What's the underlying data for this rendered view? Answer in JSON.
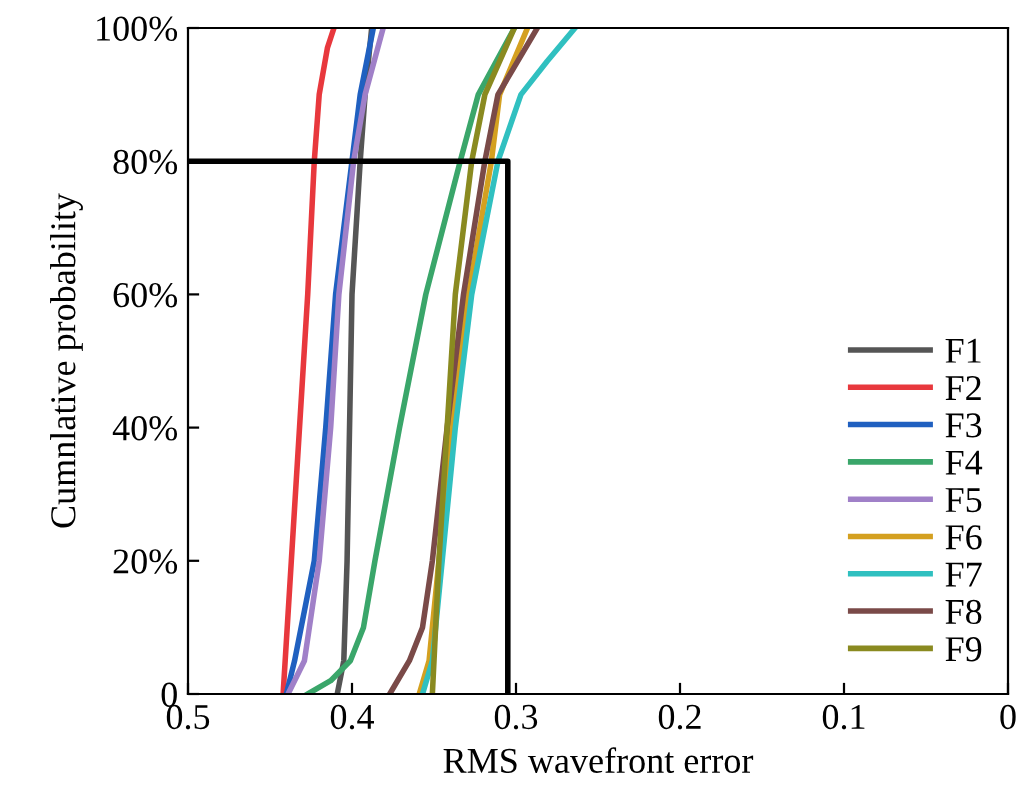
{
  "chart_data": {
    "type": "line",
    "xlabel": "RMS wavefront error",
    "ylabel": "Cumnlative probability",
    "xlim": [
      0.5,
      0
    ],
    "xticks": [
      0.5,
      0.4,
      0.3,
      0.2,
      0.1,
      0
    ],
    "ylim": [
      0,
      100
    ],
    "yticks": [
      {
        "value": 0,
        "label": "0"
      },
      {
        "value": 20,
        "label": "20%"
      },
      {
        "value": 40,
        "label": "40%"
      },
      {
        "value": 60,
        "label": "60%"
      },
      {
        "value": 80,
        "label": "80%"
      },
      {
        "value": 100,
        "label": "100%"
      }
    ],
    "grid": false,
    "legend": "bottom right",
    "marker": "none",
    "line_style": "solid",
    "series": [
      {
        "name": "F1",
        "color": "#555555",
        "x": [
          0.409,
          0.405,
          0.403,
          0.4,
          0.395,
          0.392,
          0.388
        ],
        "values": [
          0,
          5,
          20,
          60,
          80,
          90,
          100
        ]
      },
      {
        "name": "F2",
        "color": "#e8383d",
        "x": [
          0.442,
          0.437,
          0.432,
          0.427,
          0.423,
          0.42,
          0.415,
          0.411
        ],
        "values": [
          0,
          20,
          40,
          60,
          80,
          90,
          97,
          100
        ]
      },
      {
        "name": "F3",
        "color": "#2060c0",
        "x": [
          0.44,
          0.435,
          0.423,
          0.416,
          0.41,
          0.4,
          0.395,
          0.387
        ],
        "values": [
          0,
          5,
          20,
          40,
          60,
          80,
          90,
          100
        ]
      },
      {
        "name": "F4",
        "color": "#3aa66a",
        "x": [
          0.427,
          0.413,
          0.401,
          0.393,
          0.386,
          0.371,
          0.355,
          0.334,
          0.323,
          0.301
        ],
        "values": [
          0,
          2,
          5,
          10,
          20,
          40,
          60,
          80,
          90,
          100
        ]
      },
      {
        "name": "F5",
        "color": "#a080c8",
        "x": [
          0.439,
          0.429,
          0.42,
          0.413,
          0.408,
          0.399,
          0.392,
          0.381
        ],
        "values": [
          0,
          5,
          20,
          40,
          60,
          80,
          90,
          100
        ]
      },
      {
        "name": "F6",
        "color": "#d4a020",
        "x": [
          0.359,
          0.353,
          0.347,
          0.339,
          0.329,
          0.315,
          0.31,
          0.293
        ],
        "values": [
          0,
          5,
          20,
          40,
          60,
          80,
          90,
          100
        ]
      },
      {
        "name": "F7",
        "color": "#30c0c0",
        "x": [
          0.357,
          0.351,
          0.345,
          0.337,
          0.327,
          0.311,
          0.297,
          0.281,
          0.264
        ],
        "values": [
          0,
          5,
          20,
          40,
          60,
          80,
          90,
          95,
          100
        ]
      },
      {
        "name": "F8",
        "color": "#7a4a48",
        "x": [
          0.377,
          0.365,
          0.357,
          0.351,
          0.342,
          0.332,
          0.319,
          0.311,
          0.287
        ],
        "values": [
          0,
          5,
          10,
          20,
          40,
          60,
          80,
          90,
          100
        ]
      },
      {
        "name": "F9",
        "color": "#8a8a20",
        "x": [
          0.351,
          0.347,
          0.342,
          0.337,
          0.327,
          0.319,
          0.301
        ],
        "values": [
          0,
          20,
          40,
          60,
          80,
          90,
          100
        ]
      },
      {
        "color": "#000000",
        "x": [
          0.5,
          0.305,
          0.305
        ],
        "values": [
          80,
          80,
          0
        ]
      }
    ]
  }
}
